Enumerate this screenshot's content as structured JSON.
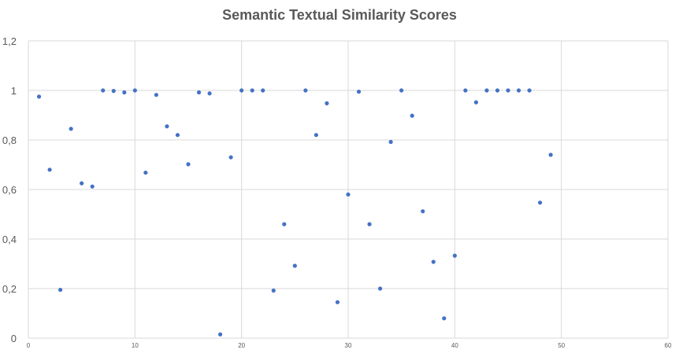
{
  "chart_data": {
    "type": "scatter",
    "title": "Semantic Textual Similarity Scores",
    "xlabel": "",
    "ylabel": "",
    "xlim": [
      0,
      60
    ],
    "ylim": [
      0,
      1.2
    ],
    "x_ticks": [
      "0",
      "10",
      "20",
      "30",
      "40",
      "50",
      "60"
    ],
    "y_ticks": [
      "0",
      "0,2",
      "0,4",
      "0,6",
      "0,8",
      "1",
      "1,2"
    ],
    "grid": true,
    "legend": "none",
    "series": [
      {
        "color": "#4472c4",
        "points": [
          [
            1,
            0.975
          ],
          [
            2,
            0.68
          ],
          [
            3,
            0.195
          ],
          [
            4,
            0.845
          ],
          [
            5,
            0.625
          ],
          [
            6,
            0.612
          ],
          [
            7,
            1.0
          ],
          [
            8,
            0.998
          ],
          [
            9,
            0.992
          ],
          [
            10,
            1.0
          ],
          [
            11,
            0.668
          ],
          [
            12,
            0.982
          ],
          [
            13,
            0.855
          ],
          [
            14,
            0.82
          ],
          [
            15,
            0.702
          ],
          [
            16,
            0.992
          ],
          [
            17,
            0.988
          ],
          [
            18,
            0.015
          ],
          [
            19,
            0.73
          ],
          [
            20,
            1.0
          ],
          [
            21,
            1.0
          ],
          [
            22,
            1.0
          ],
          [
            23,
            0.192
          ],
          [
            24,
            0.46
          ],
          [
            25,
            0.292
          ],
          [
            26,
            1.0
          ],
          [
            27,
            0.82
          ],
          [
            28,
            0.948
          ],
          [
            29,
            0.145
          ],
          [
            30,
            0.58
          ],
          [
            31,
            0.995
          ],
          [
            32,
            0.46
          ],
          [
            33,
            0.2
          ],
          [
            34,
            0.792
          ],
          [
            35,
            1.0
          ],
          [
            36,
            0.898
          ],
          [
            37,
            0.512
          ],
          [
            38,
            0.308
          ],
          [
            39,
            0.08
          ],
          [
            40,
            0.333
          ],
          [
            41,
            1.0
          ],
          [
            42,
            0.952
          ],
          [
            43,
            1.0
          ],
          [
            44,
            1.0
          ],
          [
            45,
            1.0
          ],
          [
            46,
            1.0
          ],
          [
            47,
            1.0
          ],
          [
            48,
            0.547
          ],
          [
            49,
            0.74
          ]
        ]
      }
    ]
  },
  "colors": {
    "marker": "#4472c4",
    "grid": "#d9d9d9",
    "text": "#595959"
  }
}
